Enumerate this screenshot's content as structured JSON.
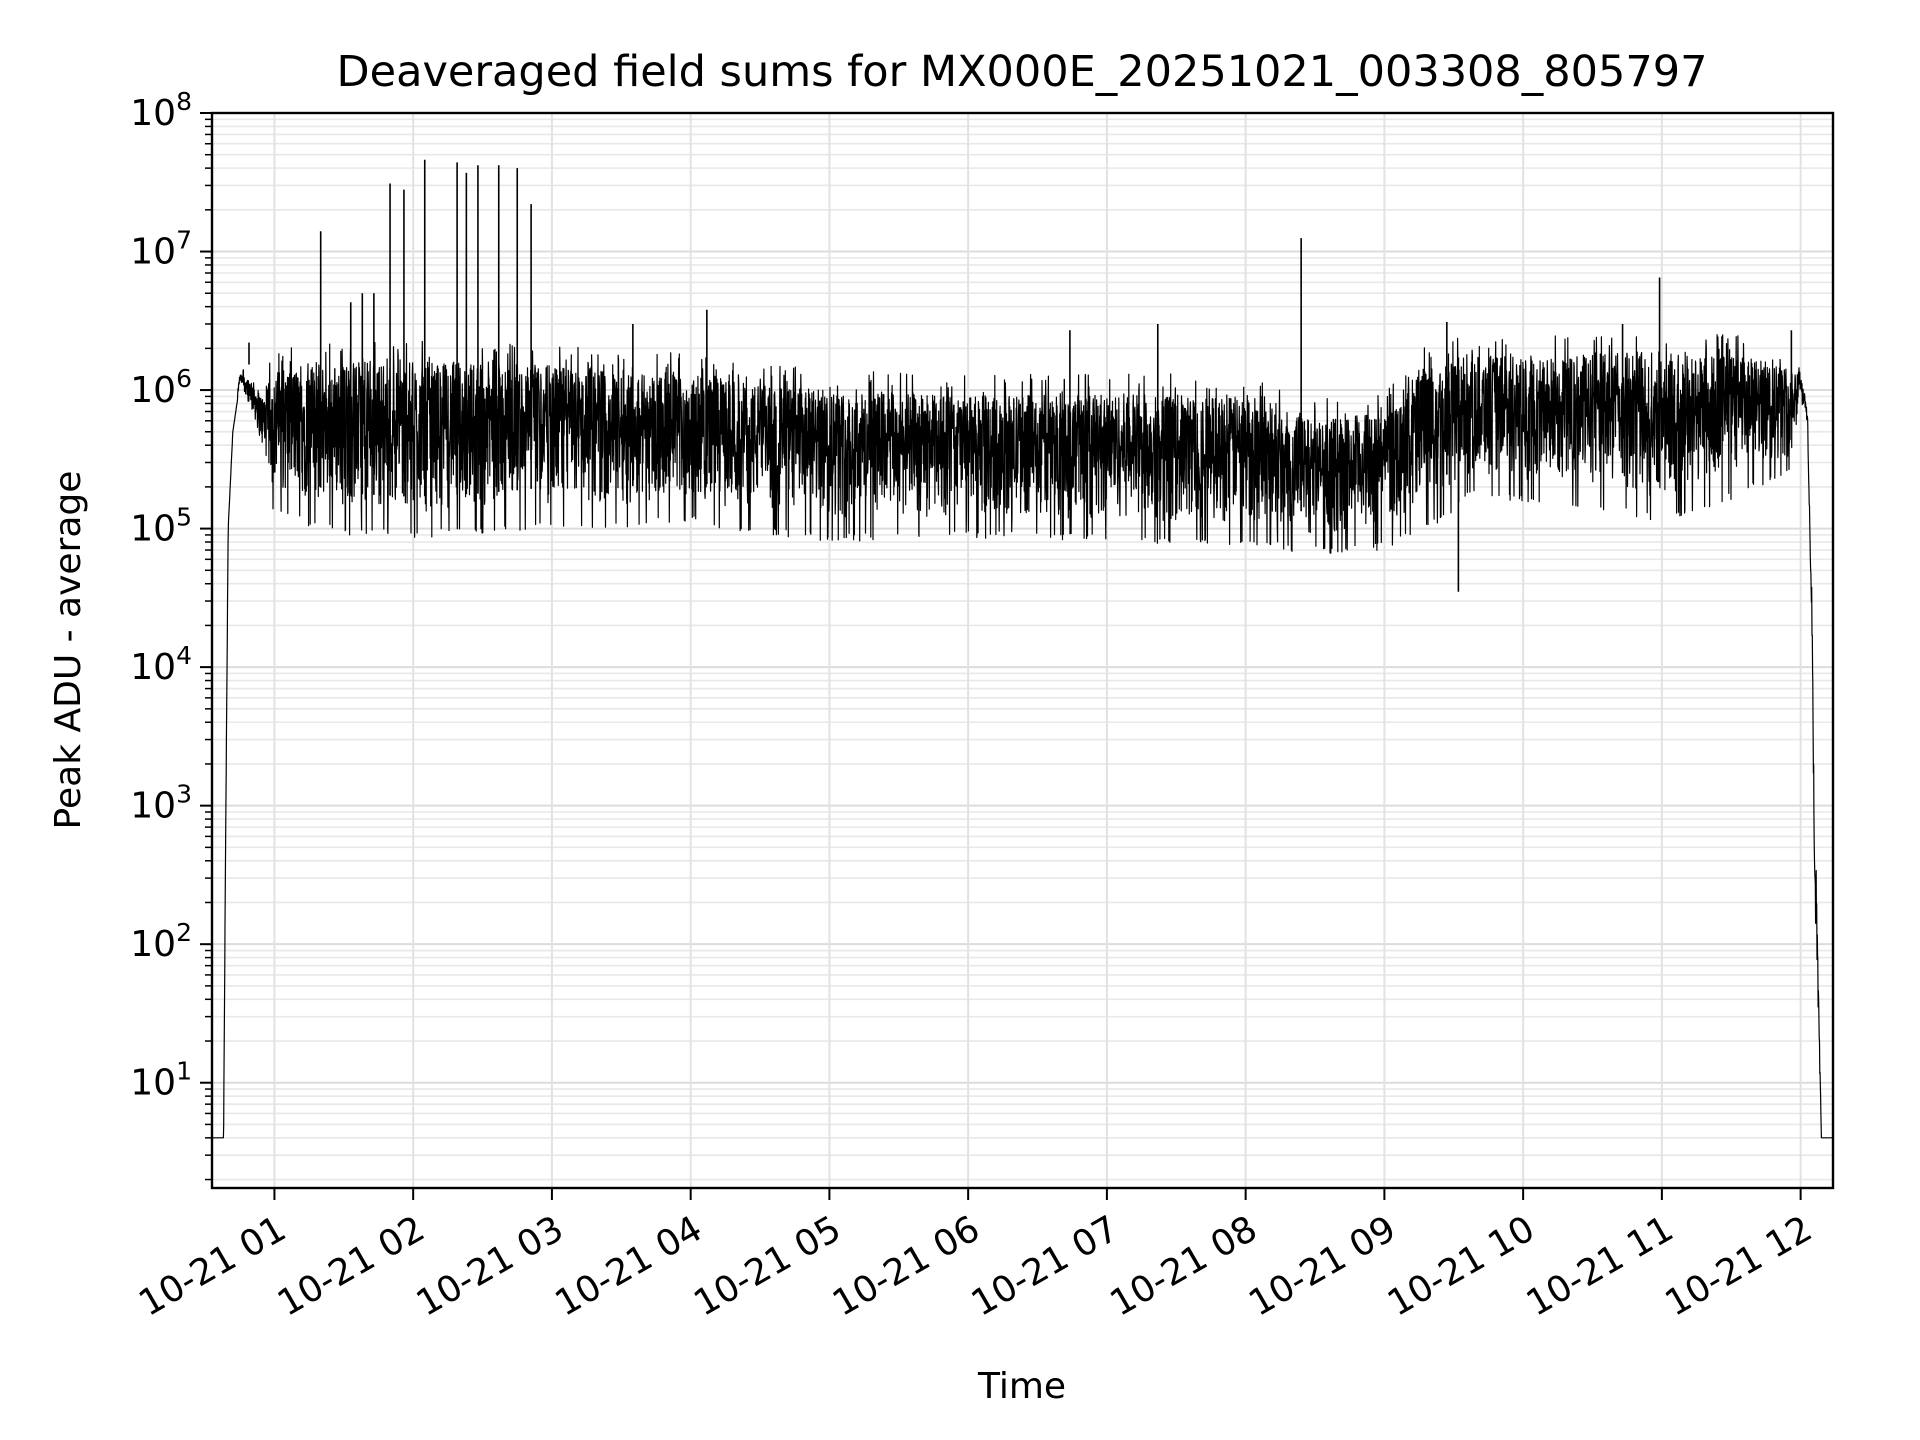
{
  "chart_data": {
    "type": "line",
    "title": "Deaveraged field sums for MX000E_20251021_003308_805797",
    "xlabel": "Time",
    "ylabel": "Peak ADU - average",
    "y_scale": "log",
    "ylim_exponents": [
      0.24,
      8
    ],
    "y_ticks": [
      {
        "base": "10",
        "exp": "1",
        "value": 10
      },
      {
        "base": "10",
        "exp": "2",
        "value": 100
      },
      {
        "base": "10",
        "exp": "3",
        "value": 1000
      },
      {
        "base": "10",
        "exp": "4",
        "value": 10000
      },
      {
        "base": "10",
        "exp": "5",
        "value": 100000
      },
      {
        "base": "10",
        "exp": "6",
        "value": 1000000
      },
      {
        "base": "10",
        "exp": "7",
        "value": 10000000
      },
      {
        "base": "10",
        "exp": "8",
        "value": 100000000
      }
    ],
    "x_range": [
      "2025-10-21 00:33",
      "2025-10-21 12:14"
    ],
    "x_ticks": [
      {
        "label": "10-21 01",
        "time": "2025-10-21 01:00"
      },
      {
        "label": "10-21 02",
        "time": "2025-10-21 02:00"
      },
      {
        "label": "10-21 03",
        "time": "2025-10-21 03:00"
      },
      {
        "label": "10-21 04",
        "time": "2025-10-21 04:00"
      },
      {
        "label": "10-21 05",
        "time": "2025-10-21 05:00"
      },
      {
        "label": "10-21 06",
        "time": "2025-10-21 06:00"
      },
      {
        "label": "10-21 07",
        "time": "2025-10-21 07:00"
      },
      {
        "label": "10-21 08",
        "time": "2025-10-21 08:00"
      },
      {
        "label": "10-21 09",
        "time": "2025-10-21 09:00"
      },
      {
        "label": "10-21 10",
        "time": "2025-10-21 10:00"
      },
      {
        "label": "10-21 11",
        "time": "2025-10-21 11:00"
      },
      {
        "label": "10-21 12",
        "time": "2025-10-21 12:00"
      }
    ],
    "grid": true,
    "series": [
      {
        "color": "#000000",
        "envelope": [
          {
            "t": "2025-10-21 00:33",
            "low": 4,
            "high": 4
          },
          {
            "t": "2025-10-21 00:38",
            "low": 4,
            "high": 4
          },
          {
            "t": "2025-10-21 00:39",
            "low": 1000,
            "high": 1000
          },
          {
            "t": "2025-10-21 00:40",
            "low": 100000,
            "high": 100000
          },
          {
            "t": "2025-10-21 00:42",
            "low": 500000,
            "high": 500000
          },
          {
            "t": "2025-10-21 00:45",
            "low": 1100000,
            "high": 1300000
          },
          {
            "t": "2025-10-21 00:50",
            "low": 700000,
            "high": 1200000
          },
          {
            "t": "2025-10-21 00:55",
            "low": 300000,
            "high": 900000
          },
          {
            "t": "2025-10-21 01:00",
            "low": 120000,
            "high": 1400000
          },
          {
            "t": "2025-10-21 01:30",
            "low": 90000,
            "high": 1600000
          },
          {
            "t": "2025-10-21 02:00",
            "low": 85000,
            "high": 1600000
          },
          {
            "t": "2025-10-21 02:30",
            "low": 90000,
            "high": 1600000
          },
          {
            "t": "2025-10-21 03:00",
            "low": 100000,
            "high": 1500000
          },
          {
            "t": "2025-10-21 03:30",
            "low": 100000,
            "high": 1400000
          },
          {
            "t": "2025-10-21 04:00",
            "low": 110000,
            "high": 1300000
          },
          {
            "t": "2025-10-21 04:30",
            "low": 90000,
            "high": 1100000
          },
          {
            "t": "2025-10-21 05:00",
            "low": 80000,
            "high": 1000000
          },
          {
            "t": "2025-10-21 06:00",
            "low": 85000,
            "high": 900000
          },
          {
            "t": "2025-10-21 07:00",
            "low": 80000,
            "high": 950000
          },
          {
            "t": "2025-10-21 08:00",
            "low": 75000,
            "high": 900000
          },
          {
            "t": "2025-10-21 08:30",
            "low": 65000,
            "high": 600000
          },
          {
            "t": "2025-10-21 09:00",
            "low": 70000,
            "high": 700000
          },
          {
            "t": "2025-10-21 09:20",
            "low": 100000,
            "high": 1600000
          },
          {
            "t": "2025-10-21 09:40",
            "low": 180000,
            "high": 1800000
          },
          {
            "t": "2025-10-21 10:00",
            "low": 150000,
            "high": 1700000
          },
          {
            "t": "2025-10-21 10:30",
            "low": 140000,
            "high": 1800000
          },
          {
            "t": "2025-10-21 11:00",
            "low": 110000,
            "high": 1900000
          },
          {
            "t": "2025-10-21 11:30",
            "low": 160000,
            "high": 1800000
          },
          {
            "t": "2025-10-21 11:55",
            "low": 250000,
            "high": 1500000
          },
          {
            "t": "2025-10-21 12:00",
            "low": 900000,
            "high": 1400000
          },
          {
            "t": "2025-10-21 12:03",
            "low": 500000,
            "high": 700000
          },
          {
            "t": "2025-10-21 12:05",
            "low": 10000,
            "high": 20000
          },
          {
            "t": "2025-10-21 12:06",
            "low": 300,
            "high": 400
          },
          {
            "t": "2025-10-21 12:07",
            "low": 60,
            "high": 200
          },
          {
            "t": "2025-10-21 12:09",
            "low": 4,
            "high": 4
          },
          {
            "t": "2025-10-21 12:14",
            "low": 4,
            "high": 4
          }
        ],
        "spikes": [
          {
            "t": "2025-10-21 00:49",
            "y": 2200000
          },
          {
            "t": "2025-10-21 01:20",
            "y": 14000000
          },
          {
            "t": "2025-10-21 01:33",
            "y": 4300000
          },
          {
            "t": "2025-10-21 01:38",
            "y": 5000000
          },
          {
            "t": "2025-10-21 01:43",
            "y": 5000000
          },
          {
            "t": "2025-10-21 01:50",
            "y": 31000000
          },
          {
            "t": "2025-10-21 01:56",
            "y": 28000000
          },
          {
            "t": "2025-10-21 02:05",
            "y": 46000000
          },
          {
            "t": "2025-10-21 02:19",
            "y": 44000000
          },
          {
            "t": "2025-10-21 02:23",
            "y": 37000000
          },
          {
            "t": "2025-10-21 02:28",
            "y": 42000000
          },
          {
            "t": "2025-10-21 02:37",
            "y": 42000000
          },
          {
            "t": "2025-10-21 02:45",
            "y": 40000000
          },
          {
            "t": "2025-10-21 02:51",
            "y": 22000000
          },
          {
            "t": "2025-10-21 03:35",
            "y": 3000000
          },
          {
            "t": "2025-10-21 04:07",
            "y": 3800000
          },
          {
            "t": "2025-10-21 06:44",
            "y": 2700000
          },
          {
            "t": "2025-10-21 07:22",
            "y": 3000000
          },
          {
            "t": "2025-10-21 08:24",
            "y": 12500000
          },
          {
            "t": "2025-10-21 09:27",
            "y": 3100000
          },
          {
            "t": "2025-10-21 09:32",
            "y": 35000
          },
          {
            "t": "2025-10-21 10:43",
            "y": 3000000
          },
          {
            "t": "2025-10-21 10:59",
            "y": 6500000
          },
          {
            "t": "2025-10-21 11:56",
            "y": 2700000
          }
        ]
      }
    ]
  }
}
